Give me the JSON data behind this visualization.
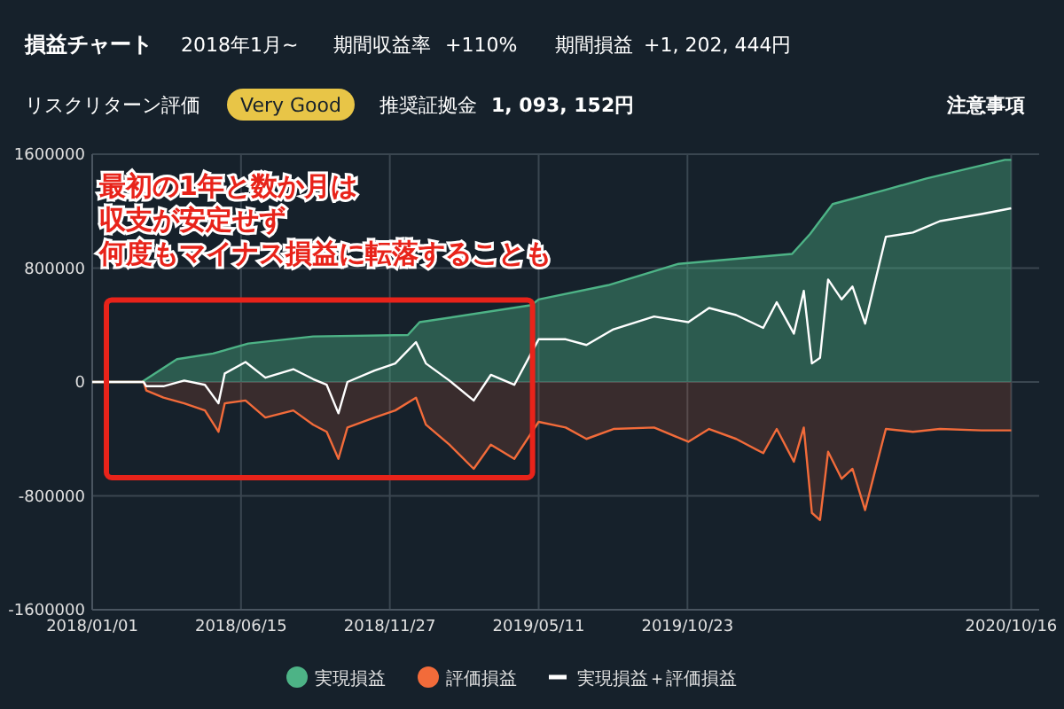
{
  "chart_data": {
    "type": "area",
    "title": "損益チャート",
    "annotations": [
      "2018年1月~",
      "期間収益率",
      "+110%",
      "期間損益",
      "+1, 202, 444円",
      "リスクリターン評価",
      "Very Good",
      "推奨証拠金",
      "1, 093, 152円",
      "注意事項",
      "最初の1年と数か月は",
      "収支が安定せず",
      "何度もマイナス損益に転落することも"
    ],
    "xlim": [
      "2018-01-01",
      "2020-11-16"
    ],
    "xticks": [
      {
        "value": "2018-01-01",
        "label": "2018/01/01"
      },
      {
        "value": "2018-06-15",
        "label": "2018/06/15"
      },
      {
        "value": "2018-11-27",
        "label": "2018/11/27"
      },
      {
        "value": "2019-05-11",
        "label": "2019/05/11"
      },
      {
        "value": "2019-10-23",
        "label": "2019/10/23"
      },
      {
        "value": "2020-10-16",
        "label": "2020/10/16"
      }
    ],
    "ylim": [
      -1600000,
      1600000
    ],
    "yticks": [
      -1600000,
      -800000,
      0,
      800000,
      1600000
    ],
    "grid": true,
    "legend": "bottom",
    "series": [
      {
        "name": "実現損益",
        "color": "#4db386",
        "x": [
          "2018-01-01",
          "2018-02-25",
          "2018-04-05",
          "2018-05-15",
          "2018-06-23",
          "2018-09-03",
          "2018-12-17",
          "2018-12-30",
          "2019-05-03",
          "2019-05-11",
          "2019-07-27",
          "2019-10-13",
          "2020-02-16",
          "2020-03-07",
          "2020-04-01",
          "2020-05-30",
          "2020-07-14",
          "2020-10-09",
          "2020-10-16"
        ],
        "values": [
          0,
          0,
          160000,
          200000,
          270000,
          320000,
          330000,
          420000,
          540000,
          580000,
          680000,
          830000,
          900000,
          1040000,
          1250000,
          1350000,
          1430000,
          1560000,
          1560000
        ]
      },
      {
        "name": "評価損益",
        "color": "#f26b3a",
        "x": [
          "2018-01-01",
          "2018-02-27",
          "2018-03-02",
          "2018-03-21",
          "2018-04-13",
          "2018-05-06",
          "2018-05-21",
          "2018-05-28",
          "2018-06-20",
          "2018-07-12",
          "2018-08-12",
          "2018-09-03",
          "2018-09-18",
          "2018-10-01",
          "2018-10-11",
          "2018-11-10",
          "2018-12-03",
          "2018-12-26",
          "2019-01-06",
          "2019-02-01",
          "2019-02-28",
          "2019-03-19",
          "2019-04-14",
          "2019-05-11",
          "2019-06-10",
          "2019-07-03",
          "2019-08-02",
          "2019-09-16",
          "2019-10-24",
          "2019-11-16",
          "2019-12-16",
          "2020-01-15",
          "2020-01-30",
          "2020-02-18",
          "2020-02-29",
          "2020-03-09",
          "2020-03-18",
          "2020-03-27",
          "2020-04-11",
          "2020-04-23",
          "2020-05-07",
          "2020-05-19",
          "2020-05-30",
          "2020-06-29",
          "2020-07-29",
          "2020-09-13",
          "2020-10-16"
        ],
        "values": [
          0,
          0,
          -60000,
          -110000,
          -150000,
          -200000,
          -350000,
          -150000,
          -130000,
          -250000,
          -200000,
          -300000,
          -350000,
          -540000,
          -320000,
          -250000,
          -200000,
          -110000,
          -300000,
          -440000,
          -610000,
          -440000,
          -540000,
          -280000,
          -320000,
          -400000,
          -330000,
          -320000,
          -420000,
          -330000,
          -400000,
          -500000,
          -330000,
          -560000,
          -320000,
          -920000,
          -970000,
          -490000,
          -680000,
          -610000,
          -900000,
          -600000,
          -330000,
          -350000,
          -330000,
          -340000,
          -340000
        ]
      },
      {
        "name": "実現損益＋評価損益",
        "type": "line",
        "color": "#ffffff",
        "x": [
          "2018-01-01",
          "2018-02-27",
          "2018-03-02",
          "2018-03-21",
          "2018-04-13",
          "2018-05-06",
          "2018-05-21",
          "2018-05-28",
          "2018-06-20",
          "2018-07-12",
          "2018-08-12",
          "2018-09-03",
          "2018-09-18",
          "2018-10-01",
          "2018-10-11",
          "2018-11-10",
          "2018-12-03",
          "2018-12-26",
          "2019-01-06",
          "2019-02-01",
          "2019-02-28",
          "2019-03-19",
          "2019-04-14",
          "2019-05-11",
          "2019-06-10",
          "2019-07-03",
          "2019-08-02",
          "2019-09-16",
          "2019-10-24",
          "2019-11-16",
          "2019-12-16",
          "2020-01-15",
          "2020-01-30",
          "2020-02-18",
          "2020-02-29",
          "2020-03-09",
          "2020-03-18",
          "2020-03-27",
          "2020-04-11",
          "2020-04-23",
          "2020-05-07",
          "2020-05-19",
          "2020-05-30",
          "2020-06-29",
          "2020-07-29",
          "2020-09-13",
          "2020-10-16"
        ],
        "values": [
          0,
          0,
          -30000,
          -30000,
          10000,
          -20000,
          -150000,
          60000,
          140000,
          30000,
          90000,
          20000,
          -20000,
          -220000,
          0,
          80000,
          130000,
          280000,
          130000,
          10000,
          -130000,
          50000,
          -20000,
          300000,
          300000,
          260000,
          370000,
          460000,
          420000,
          520000,
          470000,
          380000,
          560000,
          340000,
          640000,
          130000,
          170000,
          720000,
          580000,
          670000,
          410000,
          730000,
          1020000,
          1050000,
          1130000,
          1180000,
          1220000
        ]
      }
    ]
  }
}
